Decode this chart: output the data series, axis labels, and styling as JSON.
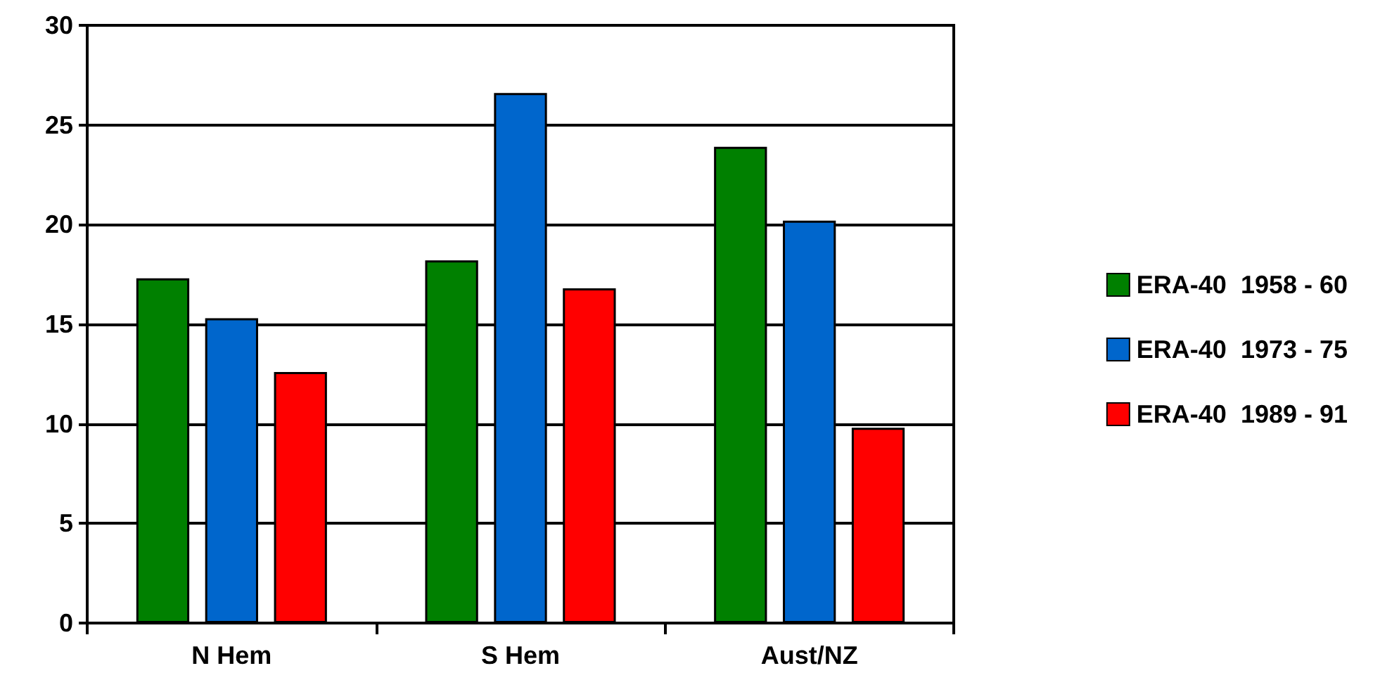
{
  "chart_data": {
    "type": "bar",
    "categories": [
      "N Hem",
      "S Hem",
      "Aust/NZ"
    ],
    "series": [
      {
        "name": "ERA-40  1958 - 60",
        "color": "#008000",
        "values": [
          17.3,
          18.2,
          23.9
        ]
      },
      {
        "name": "ERA-40  1973 - 75",
        "color": "#0066cc",
        "values": [
          15.3,
          26.6,
          20.2
        ]
      },
      {
        "name": "ERA-40  1989 - 91",
        "color": "#ff0000",
        "values": [
          12.6,
          16.8,
          9.8
        ]
      }
    ],
    "ylim": [
      0,
      30
    ],
    "yticks": [
      0,
      5,
      10,
      15,
      20,
      25,
      30
    ],
    "grid": "y",
    "legend": "right"
  }
}
